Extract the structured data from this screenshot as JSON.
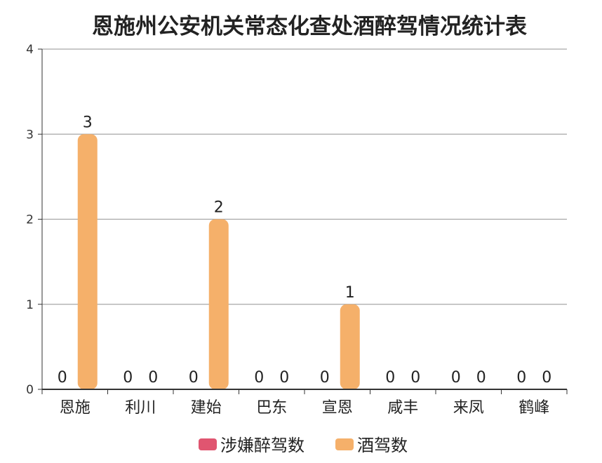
{
  "chart_data": {
    "type": "bar",
    "title": "恩施州公安机关常态化查处酒醉驾情况统计表",
    "categories": [
      "恩施",
      "利川",
      "建始",
      "巴东",
      "宣恩",
      "咸丰",
      "来凤",
      "鹤峰"
    ],
    "series": [
      {
        "name": "涉嫌醉驾数",
        "color": "#e05570",
        "values": [
          0,
          0,
          0,
          0,
          0,
          0,
          0,
          0
        ]
      },
      {
        "name": "酒驾数",
        "color": "#f5b06a",
        "values": [
          3,
          0,
          2,
          0,
          1,
          0,
          0,
          0
        ]
      }
    ],
    "ylim": [
      0,
      4
    ],
    "yticks": [
      0,
      1,
      2,
      3,
      4
    ],
    "grid": true,
    "legend_position": "bottom",
    "data_labels": true
  }
}
